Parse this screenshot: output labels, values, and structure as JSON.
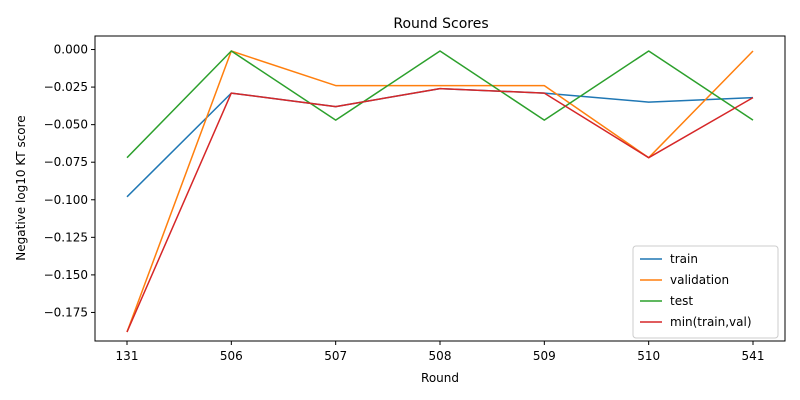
{
  "chart_data": {
    "type": "line",
    "title": "Round Scores",
    "xlabel": "Round",
    "ylabel": "Negative log10 KT score",
    "categories": [
      "131",
      "506",
      "507",
      "508",
      "509",
      "510",
      "541"
    ],
    "ylim": [
      -0.194,
      0.009
    ],
    "yticks": [
      0.0,
      -0.025,
      -0.05,
      -0.075,
      -0.1,
      -0.125,
      -0.15,
      -0.175
    ],
    "ytick_labels": [
      "0.000",
      "−0.025",
      "−0.050",
      "−0.075",
      "−0.100",
      "−0.125",
      "−0.150",
      "−0.175"
    ],
    "grid": false,
    "legend_position": "bottom-right",
    "series": [
      {
        "name": "train",
        "color": "#1f77b4",
        "values": [
          -0.098,
          -0.029,
          -0.038,
          -0.026,
          -0.029,
          -0.035,
          -0.032
        ]
      },
      {
        "name": "validation",
        "color": "#ff7f0e",
        "values": [
          -0.188,
          -0.001,
          -0.024,
          -0.024,
          -0.024,
          -0.072,
          -0.001
        ]
      },
      {
        "name": "test",
        "color": "#2ca02c",
        "values": [
          -0.072,
          -0.001,
          -0.047,
          -0.001,
          -0.047,
          -0.001,
          -0.047
        ]
      },
      {
        "name": "min(train,val)",
        "color": "#d62728",
        "values": [
          -0.188,
          -0.029,
          -0.038,
          -0.026,
          -0.029,
          -0.072,
          -0.032
        ]
      }
    ]
  }
}
